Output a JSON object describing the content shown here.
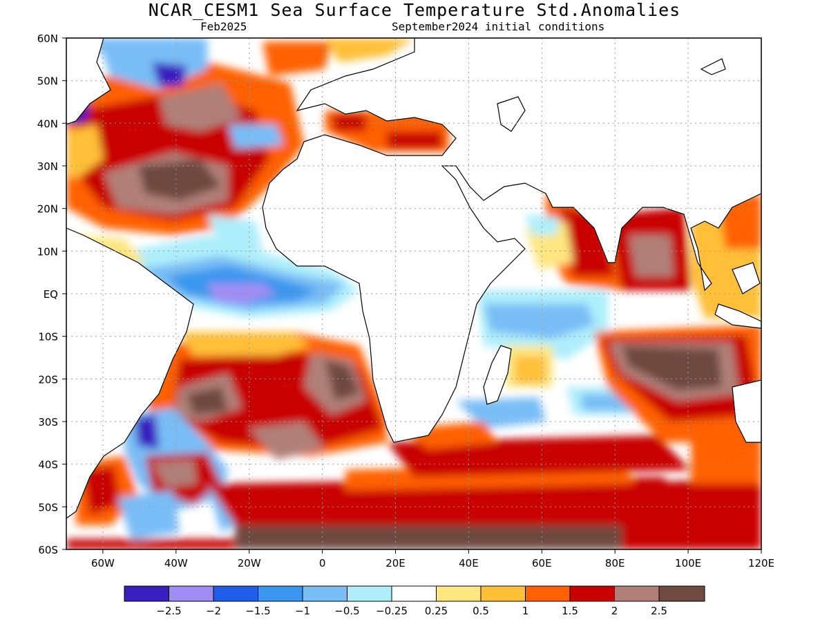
{
  "map": {
    "title": "NCAR_CESM1 Sea Surface Temperature Std.Anomalies",
    "subtitle_left": "Feb2025",
    "subtitle_right": "September2024 initial conditions",
    "lat_labels": [
      "60N",
      "50N",
      "40N",
      "30N",
      "20N",
      "10N",
      "EQ",
      "10S",
      "20S",
      "30S",
      "40S",
      "50S",
      "60S"
    ],
    "lon_labels": [
      "60W",
      "40W",
      "20W",
      "0",
      "20E",
      "40E",
      "60E",
      "80E",
      "100E",
      "120E"
    ],
    "lon_range": [
      -70,
      120
    ],
    "lat_range": [
      -60,
      60
    ]
  },
  "colorbar": {
    "colors": [
      "#3a1fc0",
      "#a08cf5",
      "#1e5ee8",
      "#3a96ef",
      "#78bdf6",
      "#aeeefb",
      "#ffffff",
      "#ffe680",
      "#ffbf37",
      "#ff6000",
      "#c80000",
      "#b08078",
      "#6e4a40"
    ],
    "labels": [
      "−2.5",
      "−2",
      "−1.5",
      "−1",
      "−0.5",
      "−0.25",
      "0.25",
      "0.5",
      "1",
      "1.5",
      "2",
      "2.5"
    ]
  },
  "legend_levels": {
    "neg25": "#3a1fc0",
    "neg2": "#a08cf5",
    "neg15": "#1e5ee8",
    "neg1": "#3a96ef",
    "neg05": "#78bdf6",
    "neg025": "#aeeefb",
    "zero": "#ffffff",
    "p025": "#ffe680",
    "p05": "#ffbf37",
    "p1": "#ff6000",
    "p15": "#c80000",
    "p2": "#b08078",
    "p25": "#6e4a40"
  }
}
